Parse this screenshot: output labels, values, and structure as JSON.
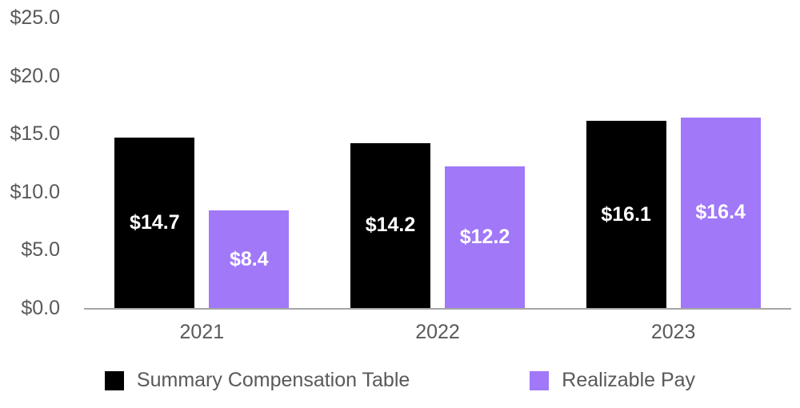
{
  "chart_data": {
    "type": "bar",
    "categories": [
      "2021",
      "2022",
      "2023"
    ],
    "series": [
      {
        "name": "Summary Compensation Table",
        "color": "#000000",
        "values": [
          14.7,
          14.2,
          16.1
        ],
        "labels": [
          "$14.7",
          "$14.2",
          "$16.1"
        ]
      },
      {
        "name": "Realizable Pay",
        "color": "#a078f8",
        "values": [
          8.4,
          12.2,
          16.4
        ],
        "labels": [
          "$8.4",
          "$12.2",
          "$16.4"
        ]
      }
    ],
    "title": "",
    "xlabel": "",
    "ylabel": "",
    "ylim": [
      0,
      25
    ],
    "ytick_step": 5,
    "ytick_labels": [
      "$0.0",
      "$5.0",
      "$10.0",
      "$15.0",
      "$20.0",
      "$25.0"
    ],
    "grid": false,
    "legend_position": "bottom",
    "bar_label_color": "#ffffff",
    "axis_text_color": "#595959",
    "axis_line_color": "#a6a6a6"
  }
}
